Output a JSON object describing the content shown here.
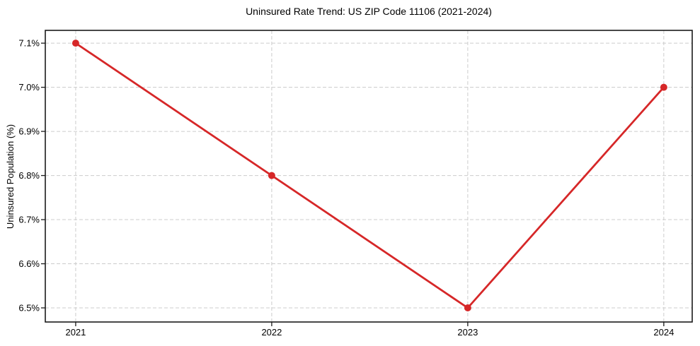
{
  "figure": {
    "title": "Uninsured Rate Trend: US ZIP Code 11106 (2021-2024)",
    "ylabel": "Uninsured Population (%)"
  },
  "chart_data": {
    "type": "line",
    "title": "Uninsured Rate Trend: US ZIP Code 11106 (2021-2024)",
    "xlabel": "",
    "ylabel": "Uninsured Population (%)",
    "x": [
      2021,
      2022,
      2023,
      2024
    ],
    "x_tick_labels": [
      "2021",
      "2022",
      "2023",
      "2024"
    ],
    "series": [
      {
        "name": "Uninsured Population (%)",
        "values": [
          7.1,
          6.8,
          6.5,
          7.0
        ],
        "color": "#d62728",
        "marker": "circle"
      }
    ],
    "y_ticks": [
      6.5,
      6.6,
      6.7,
      6.8,
      6.9,
      7.0,
      7.1
    ],
    "y_tick_labels": [
      "6.5%",
      "6.6%",
      "6.7%",
      "6.8%",
      "6.9%",
      "7.0%",
      "7.1%"
    ],
    "xlim": [
      2020.845,
      2024.145
    ],
    "ylim": [
      6.468,
      7.129
    ],
    "grid": true,
    "grid_color": "#cccccc",
    "grid_style": "dashed",
    "axis_color": "#1a1a1a",
    "tick_color": "#1a1a1a",
    "text_color": "#000000",
    "background": "#ffffff",
    "legend": "none"
  }
}
